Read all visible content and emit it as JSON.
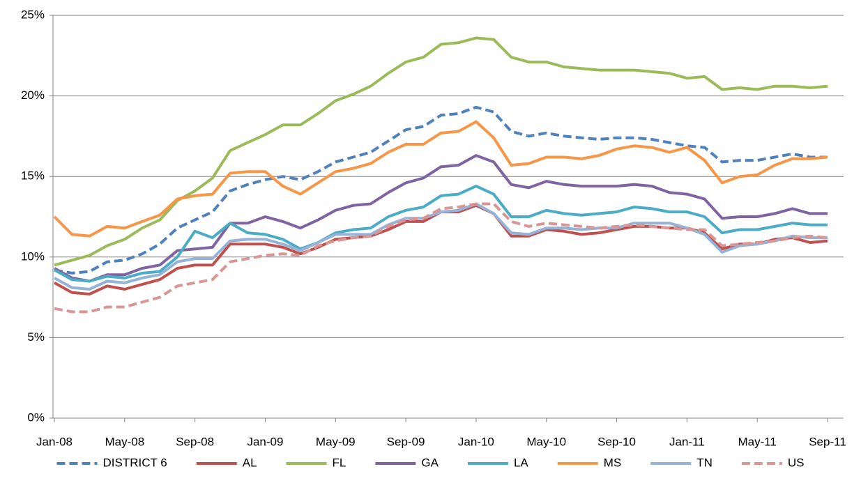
{
  "chart_data": {
    "type": "line",
    "categories": [
      "Jan-08",
      null,
      null,
      null,
      "May-08",
      null,
      null,
      null,
      "Sep-08",
      null,
      null,
      null,
      "Jan-09",
      null,
      null,
      null,
      "May-09",
      null,
      null,
      null,
      "Sep-09",
      null,
      null,
      null,
      "Jan-10",
      null,
      null,
      null,
      "May-10",
      null,
      null,
      null,
      "Sep-10",
      null,
      null,
      null,
      "Jan-11",
      null,
      null,
      null,
      "May-11",
      null,
      null,
      null,
      "Sep-11"
    ],
    "ylim": [
      0,
      25
    ],
    "yticks": [
      {
        "value": 0,
        "label": "0%"
      },
      {
        "value": 5,
        "label": "5%"
      },
      {
        "value": 10,
        "label": "10%"
      },
      {
        "value": 15,
        "label": "15%"
      },
      {
        "value": 20,
        "label": "20%"
      },
      {
        "value": 25,
        "label": "25%"
      }
    ],
    "grid": true,
    "legend": "bottom",
    "series": [
      {
        "name": "DISTRICT 6",
        "color": "#4f81bd",
        "dashed": true,
        "values": [
          9.2,
          9.0,
          9.1,
          9.7,
          9.8,
          10.2,
          10.8,
          11.8,
          12.3,
          12.8,
          14.1,
          14.5,
          14.8,
          15.0,
          14.8,
          15.3,
          15.9,
          16.2,
          16.5,
          17.2,
          17.9,
          18.1,
          18.8,
          18.9,
          19.3,
          19.0,
          17.8,
          17.5,
          17.7,
          17.5,
          17.4,
          17.3,
          17.4,
          17.4,
          17.3,
          17.1,
          16.9,
          16.8,
          15.9,
          16.0,
          16.0,
          16.2,
          16.4,
          16.2,
          16.2
        ]
      },
      {
        "name": "AL",
        "color": "#c0504d",
        "dashed": false,
        "values": [
          8.4,
          7.8,
          7.7,
          8.2,
          8.0,
          8.3,
          8.6,
          9.3,
          9.5,
          9.5,
          10.8,
          10.8,
          10.8,
          10.6,
          10.2,
          10.6,
          11.1,
          11.2,
          11.3,
          11.7,
          12.2,
          12.2,
          12.8,
          12.8,
          13.2,
          12.7,
          11.3,
          11.3,
          11.7,
          11.6,
          11.4,
          11.5,
          11.7,
          11.9,
          11.9,
          11.8,
          11.8,
          11.5,
          10.5,
          10.8,
          10.8,
          11.1,
          11.2,
          10.9,
          11.0
        ]
      },
      {
        "name": "FL",
        "color": "#9bbb59",
        "dashed": false,
        "values": [
          9.5,
          9.8,
          10.1,
          10.7,
          11.1,
          11.8,
          12.3,
          13.5,
          14.1,
          14.9,
          16.6,
          17.1,
          17.6,
          18.2,
          18.2,
          18.9,
          19.7,
          20.1,
          20.6,
          21.4,
          22.1,
          22.4,
          23.2,
          23.3,
          23.6,
          23.5,
          22.4,
          22.1,
          22.1,
          21.8,
          21.7,
          21.6,
          21.6,
          21.6,
          21.5,
          21.4,
          21.1,
          21.2,
          20.4,
          20.5,
          20.4,
          20.6,
          20.6,
          20.5,
          20.6
        ]
      },
      {
        "name": "GA",
        "color": "#8064a2",
        "dashed": false,
        "values": [
          9.3,
          8.7,
          8.5,
          8.9,
          8.9,
          9.3,
          9.5,
          10.4,
          10.5,
          10.6,
          12.1,
          12.1,
          12.5,
          12.2,
          11.8,
          12.3,
          12.9,
          13.2,
          13.3,
          14.0,
          14.6,
          14.9,
          15.6,
          15.7,
          16.3,
          15.9,
          14.5,
          14.3,
          14.7,
          14.5,
          14.4,
          14.4,
          14.4,
          14.5,
          14.4,
          14.0,
          13.9,
          13.6,
          12.4,
          12.5,
          12.5,
          12.7,
          13.0,
          12.7,
          12.7
        ]
      },
      {
        "name": "LA",
        "color": "#4bacc6",
        "dashed": false,
        "values": [
          9.2,
          8.6,
          8.5,
          8.8,
          8.7,
          9.0,
          9.1,
          10.0,
          11.6,
          11.2,
          12.1,
          11.5,
          11.4,
          11.1,
          10.5,
          10.9,
          11.5,
          11.7,
          11.8,
          12.5,
          12.9,
          13.1,
          13.8,
          13.9,
          14.4,
          13.9,
          12.5,
          12.5,
          12.9,
          12.7,
          12.6,
          12.7,
          12.8,
          13.1,
          13.0,
          12.8,
          12.8,
          12.5,
          11.5,
          11.7,
          11.7,
          11.9,
          12.1,
          12.0,
          12.0
        ]
      },
      {
        "name": "MS",
        "color": "#f79646",
        "dashed": false,
        "values": [
          12.5,
          11.4,
          11.3,
          11.9,
          11.8,
          12.2,
          12.6,
          13.6,
          13.8,
          13.9,
          15.2,
          15.3,
          15.3,
          14.4,
          13.9,
          14.6,
          15.3,
          15.5,
          15.8,
          16.5,
          17.0,
          17.0,
          17.7,
          17.8,
          18.4,
          17.4,
          15.7,
          15.8,
          16.2,
          16.2,
          16.1,
          16.3,
          16.7,
          16.9,
          16.8,
          16.5,
          16.8,
          16.0,
          14.6,
          15.0,
          15.1,
          15.7,
          16.1,
          16.1,
          16.2
        ]
      },
      {
        "name": "TN",
        "color": "#95b3d7",
        "dashed": false,
        "values": [
          8.7,
          8.1,
          8.0,
          8.5,
          8.4,
          8.7,
          8.9,
          9.7,
          9.9,
          9.9,
          11.0,
          11.1,
          11.1,
          10.8,
          10.4,
          10.9,
          11.4,
          11.4,
          11.4,
          12.0,
          12.4,
          12.4,
          12.8,
          12.9,
          13.3,
          12.7,
          11.5,
          11.4,
          11.8,
          11.8,
          11.7,
          11.8,
          11.8,
          12.1,
          12.1,
          12.1,
          11.8,
          11.4,
          10.3,
          10.7,
          10.8,
          11.0,
          11.3,
          11.2,
          11.2
        ]
      },
      {
        "name": "US",
        "color": "#d99694",
        "dashed": true,
        "values": [
          6.8,
          6.6,
          6.6,
          6.9,
          6.9,
          7.2,
          7.5,
          8.2,
          8.4,
          8.6,
          9.7,
          9.9,
          10.1,
          10.2,
          10.1,
          10.7,
          11.0,
          11.2,
          11.3,
          11.9,
          12.3,
          12.4,
          13.0,
          13.1,
          13.3,
          13.3,
          12.2,
          11.9,
          12.1,
          12.0,
          11.9,
          11.8,
          11.9,
          12.0,
          11.9,
          11.8,
          11.7,
          11.7,
          10.7,
          10.8,
          10.9,
          11.0,
          11.2,
          11.3,
          11.2
        ]
      }
    ]
  }
}
